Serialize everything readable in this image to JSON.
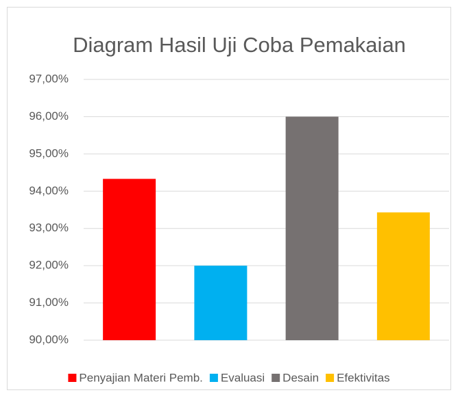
{
  "chart_data": {
    "type": "bar",
    "title": "Diagram Hasil Uji Coba Pemakaian",
    "series": [
      {
        "name": "Penyajian Materi Pemb.",
        "color": "#ff0000",
        "values": [
          94.33
        ]
      },
      {
        "name": "Evaluasi",
        "color": "#00b0f0",
        "values": [
          92.0
        ]
      },
      {
        "name": "Desain",
        "color": "#767171",
        "values": [
          96.0
        ]
      },
      {
        "name": "Efektivitas",
        "color": "#ffc000",
        "values": [
          93.43
        ]
      }
    ],
    "ylim": [
      90,
      97
    ],
    "yticks": [
      {
        "value": 90,
        "label": "90,00%"
      },
      {
        "value": 91,
        "label": "91,00%"
      },
      {
        "value": 92,
        "label": "92,00%"
      },
      {
        "value": 93,
        "label": "93,00%"
      },
      {
        "value": 94,
        "label": "94,00%"
      },
      {
        "value": 95,
        "label": "95,00%"
      },
      {
        "value": 96,
        "label": "96,00%"
      },
      {
        "value": 97,
        "label": "97,00%"
      }
    ],
    "grid": true,
    "legend": "bottom"
  }
}
